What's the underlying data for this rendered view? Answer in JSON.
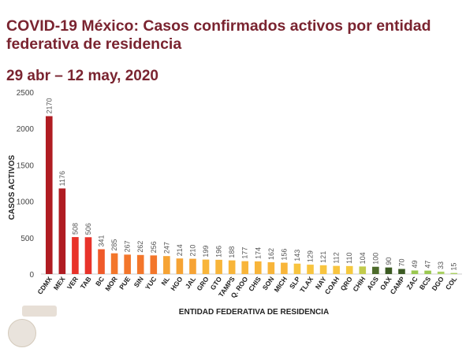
{
  "title": "COVID-19 México: Casos confirmados activos por entidad federativa de residencia",
  "subtitle": "29 abr – 12 may, 2020",
  "colors": {
    "title": "#7a2430",
    "axis_line": "#cccccc"
  },
  "chart_data": {
    "type": "bar",
    "xlabel": "ENTIDAD FEDERATIVA DE  RESIDENCIA",
    "ylabel": "CASOS ACTIVOS",
    "ylim": [
      0,
      2500
    ],
    "yticks": [
      0,
      500,
      1000,
      1500,
      2000,
      2500
    ],
    "grid": false,
    "categories": [
      "CDMX",
      "MEX",
      "VER",
      "TAB",
      "BC",
      "MOR",
      "PUE",
      "SIN",
      "YUC",
      "NL",
      "HGO",
      "JAL",
      "GRO",
      "GTO",
      "TAMPS",
      "Q. ROO",
      "CHIS",
      "SON",
      "MICH",
      "SLP",
      "TLAX",
      "NAY",
      "COAH",
      "QRO",
      "CHIH",
      "AGS",
      "OAX",
      "CAMP",
      "ZAC",
      "BCS",
      "DGO",
      "COL"
    ],
    "values": [
      2170,
      1176,
      508,
      506,
      341,
      285,
      267,
      262,
      256,
      247,
      214,
      210,
      199,
      196,
      188,
      177,
      174,
      162,
      156,
      143,
      129,
      121,
      112,
      110,
      104,
      100,
      90,
      70,
      49,
      47,
      33,
      15
    ],
    "bar_colors": [
      "#b01c22",
      "#b01c22",
      "#e8332a",
      "#e8332a",
      "#ef5a2a",
      "#f3762b",
      "#f3762b",
      "#f3762b",
      "#f3762b",
      "#f6a334",
      "#f6a334",
      "#f6a334",
      "#f8b53a",
      "#f8b53a",
      "#f8b53a",
      "#f8b53a",
      "#f8b53a",
      "#f8b53a",
      "#f8b53a",
      "#f8c43f",
      "#f8c43f",
      "#f8c43f",
      "#f8c43f",
      "#f6c93f",
      "#c2cb4c",
      "#4d6b2a",
      "#3b5a22",
      "#3b5a22",
      "#9ac850",
      "#9ac850",
      "#a9d063",
      "#a9d063"
    ]
  }
}
